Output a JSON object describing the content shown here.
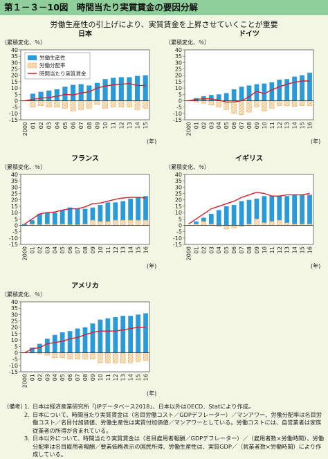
{
  "header": {
    "title": "第１－３－10図　時間当たり実質賃金の要因分解"
  },
  "subtitle": "労働生産性の引上げにより、実質賃金を上昇させていくことが重要",
  "common": {
    "unit_label": "（累積変化、％）",
    "year_suffix": "(年)",
    "legend": [
      "労働生産性",
      "労働分配率",
      "時間当たり実質賃金"
    ],
    "colors": {
      "productivity": "#2a9bd8",
      "labor_share": "#e8a24a",
      "wage": "#d81e2a",
      "background": "#f4f6e4"
    }
  },
  "chart_data": [
    {
      "type": "bar",
      "title": "日本",
      "ylim": [
        -15,
        40
      ],
      "yticks": [
        40,
        35,
        30,
        25,
        20,
        15,
        10,
        5,
        0,
        -5,
        -10,
        -15
      ],
      "categories": [
        "2000",
        "01",
        "02",
        "03",
        "04",
        "05",
        "06",
        "07",
        "08",
        "09",
        "10",
        "11",
        "12",
        "13",
        "14",
        "15"
      ],
      "series": [
        {
          "name": "労働生産性",
          "values": [
            0,
            5.5,
            7,
            8,
            9,
            11,
            12.5,
            13,
            12,
            14,
            17,
            18,
            18.5,
            18.5,
            19.5,
            20
          ]
        },
        {
          "name": "労働分配率",
          "values": [
            0,
            -5,
            -4,
            -5,
            -5,
            -6,
            -8,
            -7,
            -6,
            -3,
            -6,
            -5,
            -5,
            -5,
            -7,
            -6
          ]
        },
        {
          "name": "時間当たり実質賃金",
          "values": [
            0,
            1,
            2,
            2.5,
            3.5,
            5,
            4.5,
            6,
            7,
            10,
            11.5,
            12.5,
            13,
            13.5,
            12,
            12
          ]
        }
      ]
    },
    {
      "type": "bar",
      "title": "ドイツ",
      "ylim": [
        -15,
        40
      ],
      "yticks": [
        40,
        35,
        30,
        25,
        20,
        15,
        10,
        5,
        0,
        -5,
        -10,
        -15
      ],
      "categories": [
        "2000",
        "01",
        "02",
        "03",
        "04",
        "05",
        "06",
        "07",
        "08",
        "09",
        "10",
        "11",
        "12",
        "13",
        "14",
        "15",
        "16"
      ],
      "series": [
        {
          "name": "労働生産性",
          "values": [
            0,
            2,
            3.5,
            4.5,
            5,
            6,
            9,
            11,
            12,
            13,
            13.5,
            14.5,
            16.5,
            17,
            19,
            20,
            22
          ]
        },
        {
          "name": "労働分配率",
          "values": [
            0,
            -1,
            -2,
            -3.5,
            -5,
            -7,
            -10,
            -11,
            -9,
            -5,
            -8,
            -6,
            -4,
            -4,
            -4.5,
            -4,
            -4
          ]
        },
        {
          "name": "時間当たり実質賃金",
          "values": [
            0,
            1,
            1.5,
            1.5,
            0.5,
            -1,
            -1,
            0,
            3,
            7.5,
            5.5,
            8.5,
            11,
            13,
            14.5,
            15.5,
            15.5
          ]
        }
      ]
    },
    {
      "type": "bar",
      "title": "フランス",
      "ylim": [
        -15,
        40
      ],
      "yticks": [
        40,
        35,
        30,
        25,
        20,
        15,
        10,
        5,
        0,
        -5,
        -10,
        -15
      ],
      "categories": [
        "2000",
        "01",
        "02",
        "03",
        "04",
        "05",
        "06",
        "07",
        "08",
        "09",
        "10",
        "11",
        "12",
        "13",
        "14",
        "15",
        "16"
      ],
      "series": [
        {
          "name": "労働生産性",
          "values": [
            1,
            4,
            9,
            10,
            10,
            12,
            14,
            13,
            13,
            14,
            16,
            18,
            18,
            19,
            21,
            22,
            23
          ]
        },
        {
          "name": "労働分配率",
          "values": [
            0,
            1,
            0.5,
            1,
            0.5,
            1,
            0.5,
            0.5,
            1,
            4,
            3,
            3,
            4,
            4,
            4,
            4,
            4
          ]
        },
        {
          "name": "時間当たり実質賃金",
          "values": [
            1,
            5,
            9,
            10,
            10.5,
            12,
            13,
            13,
            14.5,
            17,
            17.5,
            19,
            20.5,
            21.5,
            22,
            22,
            21.5
          ]
        }
      ]
    },
    {
      "type": "bar",
      "title": "イギリス",
      "ylim": [
        -15,
        40
      ],
      "yticks": [
        40,
        35,
        30,
        25,
        20,
        15,
        10,
        5,
        0,
        -5,
        -10,
        -15
      ],
      "categories": [
        "2000",
        "01",
        "02",
        "03",
        "04",
        "05",
        "06",
        "07",
        "08",
        "09",
        "10",
        "11",
        "12",
        "13",
        "14",
        "15",
        "16"
      ],
      "series": [
        {
          "name": "労働生産性",
          "values": [
            0,
            3,
            6,
            9,
            12,
            15,
            16,
            19,
            20,
            21,
            23,
            23,
            23,
            23,
            24,
            24,
            24
          ]
        },
        {
          "name": "労働分配率",
          "values": [
            0,
            1,
            3,
            1,
            -1,
            -3,
            -2,
            -1,
            1,
            5,
            2,
            3,
            4,
            2,
            1,
            1,
            1
          ]
        },
        {
          "name": "時間当たり実質賃金",
          "values": [
            1,
            5,
            9,
            13,
            15,
            17,
            19,
            22,
            24,
            26,
            25,
            23,
            23,
            24,
            24,
            24,
            25
          ]
        }
      ]
    },
    {
      "type": "bar",
      "title": "アメリカ",
      "ylim": [
        -15,
        40
      ],
      "yticks": [
        40,
        35,
        30,
        25,
        20,
        15,
        10,
        5,
        0,
        -5,
        -10,
        -15
      ],
      "categories": [
        "2000",
        "01",
        "02",
        "03",
        "04",
        "05",
        "06",
        "07",
        "08",
        "09",
        "10",
        "11",
        "12",
        "13",
        "14",
        "15",
        "16"
      ],
      "series": [
        {
          "name": "労働生産性",
          "values": [
            0,
            4,
            7,
            11,
            14,
            16,
            17,
            19,
            20,
            23,
            26,
            27,
            28,
            29,
            29,
            30,
            31
          ]
        },
        {
          "name": "労働分配率",
          "values": [
            0,
            0,
            -1,
            -2,
            -4,
            -4,
            -5,
            -5,
            -5,
            -5,
            -8,
            -8,
            -8,
            -8,
            -8,
            -7,
            -6
          ]
        },
        {
          "name": "時間当たり実質賃金",
          "values": [
            0,
            3,
            4,
            7,
            8,
            9,
            11,
            12,
            14,
            16,
            17,
            17,
            17,
            18,
            19,
            20,
            20
          ]
        }
      ]
    }
  ],
  "notes": {
    "label": "（備考）",
    "items": [
      {
        "num": "1.",
        "text": "日本は経済産業研究所「JIPデータベース2018」、日本以外はOECD．Statにより作成。"
      },
      {
        "num": "2.",
        "text": "日本について、時間当たり実質賃金は（名目労働コスト／GDPデフレーター）／マンアワー、労働分配率は名目労働コスト／名目付加価値、労働生産性は実質付加価値／マンアワーとしている。労働コストには、自営業者は家族従業者の所得が含まれている。"
      },
      {
        "num": "3.",
        "text": "日本以外について、時間当たり実質賃金は（名目雇用者報酬／GDPデフレーター）／（雇用者数×労働時間）、労働分配率は名目雇用者報酬／要素価格表示の国民所得、労働生産性は、実質GDP／（就業者数×労働時間）により作成している。"
      }
    ]
  }
}
